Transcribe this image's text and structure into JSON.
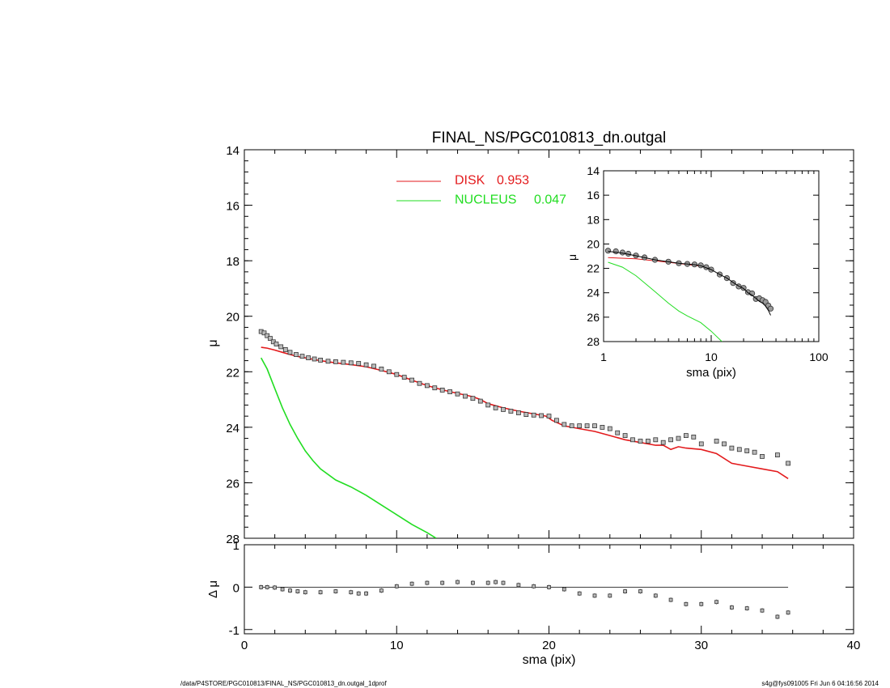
{
  "chart_data": [
    {
      "panel": "main",
      "type": "scatter",
      "title": "FINAL_NS/PGC010813_dn.outgal",
      "ylabel": "μ",
      "y_inverted": true,
      "xlim": [
        0,
        40
      ],
      "ylim": [
        28,
        14
      ],
      "y_ticks": [
        14,
        16,
        18,
        20,
        22,
        24,
        26,
        28
      ],
      "legend": {
        "placement": "top-center",
        "entries": [
          {
            "label": "DISK",
            "value": "0.953",
            "color": "#e31a1c"
          },
          {
            "label": "NUCLEUS",
            "value": "0.047",
            "color": "#22dd22"
          }
        ]
      },
      "series": [
        {
          "name": "data",
          "style": "markers",
          "color": "#444444",
          "points": [
            [
              1.1,
              20.55
            ],
            [
              1.3,
              20.6
            ],
            [
              1.5,
              20.7
            ],
            [
              1.7,
              20.8
            ],
            [
              1.9,
              20.92
            ],
            [
              2.1,
              21.0
            ],
            [
              2.4,
              21.1
            ],
            [
              2.7,
              21.2
            ],
            [
              3.0,
              21.3
            ],
            [
              3.4,
              21.38
            ],
            [
              3.8,
              21.44
            ],
            [
              4.2,
              21.5
            ],
            [
              4.6,
              21.54
            ],
            [
              5.0,
              21.58
            ],
            [
              5.5,
              21.62
            ],
            [
              6.0,
              21.64
            ],
            [
              6.5,
              21.66
            ],
            [
              7.0,
              21.68
            ],
            [
              7.5,
              21.7
            ],
            [
              8.0,
              21.75
            ],
            [
              8.5,
              21.8
            ],
            [
              9.0,
              21.9
            ],
            [
              9.5,
              22.0
            ],
            [
              10.0,
              22.1
            ],
            [
              10.5,
              22.2
            ],
            [
              11.0,
              22.3
            ],
            [
              11.5,
              22.42
            ],
            [
              12.0,
              22.5
            ],
            [
              12.5,
              22.58
            ],
            [
              13.0,
              22.66
            ],
            [
              13.5,
              22.72
            ],
            [
              14.0,
              22.8
            ],
            [
              14.5,
              22.88
            ],
            [
              15.0,
              22.96
            ],
            [
              15.5,
              23.06
            ],
            [
              16.0,
              23.2
            ],
            [
              16.5,
              23.3
            ],
            [
              17.0,
              23.36
            ],
            [
              17.5,
              23.42
            ],
            [
              18.0,
              23.48
            ],
            [
              18.5,
              23.54
            ],
            [
              19.0,
              23.56
            ],
            [
              19.5,
              23.58
            ],
            [
              20.0,
              23.6
            ],
            [
              20.5,
              23.75
            ],
            [
              21.0,
              23.9
            ],
            [
              21.5,
              23.95
            ],
            [
              22.0,
              23.95
            ],
            [
              22.5,
              23.95
            ],
            [
              23.0,
              23.95
            ],
            [
              23.5,
              24.0
            ],
            [
              24.0,
              24.05
            ],
            [
              24.5,
              24.2
            ],
            [
              25.0,
              24.3
            ],
            [
              25.5,
              24.45
            ],
            [
              26.0,
              24.5
            ],
            [
              26.5,
              24.5
            ],
            [
              27.0,
              24.45
            ],
            [
              27.5,
              24.55
            ],
            [
              28.0,
              24.45
            ],
            [
              28.5,
              24.4
            ],
            [
              29.0,
              24.3
            ],
            [
              29.5,
              24.35
            ],
            [
              30.0,
              24.6
            ],
            [
              31.0,
              24.5
            ],
            [
              31.5,
              24.6
            ],
            [
              32.0,
              24.75
            ],
            [
              32.5,
              24.8
            ],
            [
              33.0,
              24.85
            ],
            [
              33.5,
              24.9
            ],
            [
              34.0,
              25.05
            ],
            [
              35.0,
              25.0
            ],
            [
              35.7,
              25.3
            ]
          ]
        },
        {
          "name": "DISK 0.953",
          "style": "line",
          "color": "#e31a1c",
          "points": [
            [
              1.1,
              21.12
            ],
            [
              1.5,
              21.15
            ],
            [
              2.0,
              21.22
            ],
            [
              2.5,
              21.3
            ],
            [
              3.0,
              21.38
            ],
            [
              3.5,
              21.45
            ],
            [
              4.0,
              21.5
            ],
            [
              5.0,
              21.6
            ],
            [
              6.0,
              21.68
            ],
            [
              7.0,
              21.74
            ],
            [
              8.0,
              21.82
            ],
            [
              9.0,
              21.95
            ],
            [
              10.0,
              22.1
            ],
            [
              11.0,
              22.3
            ],
            [
              12.0,
              22.5
            ],
            [
              13.0,
              22.65
            ],
            [
              14.0,
              22.78
            ],
            [
              15.0,
              22.9
            ],
            [
              15.5,
              23.0
            ],
            [
              16.0,
              23.15
            ],
            [
              17.0,
              23.3
            ],
            [
              18.0,
              23.42
            ],
            [
              19.0,
              23.52
            ],
            [
              19.8,
              23.6
            ],
            [
              20.2,
              23.75
            ],
            [
              21.0,
              23.95
            ],
            [
              22.0,
              24.05
            ],
            [
              23.0,
              24.15
            ],
            [
              24.0,
              24.3
            ],
            [
              25.0,
              24.45
            ],
            [
              26.0,
              24.55
            ],
            [
              27.0,
              24.65
            ],
            [
              27.5,
              24.65
            ],
            [
              28.0,
              24.8
            ],
            [
              28.5,
              24.7
            ],
            [
              29.0,
              24.75
            ],
            [
              30.0,
              24.8
            ],
            [
              31.0,
              24.95
            ],
            [
              32.0,
              25.3
            ],
            [
              33.0,
              25.4
            ],
            [
              34.0,
              25.5
            ],
            [
              35.0,
              25.6
            ],
            [
              35.7,
              25.85
            ]
          ]
        },
        {
          "name": "NUCLEUS 0.047",
          "style": "line",
          "color": "#22dd22",
          "points": [
            [
              1.1,
              21.5
            ],
            [
              1.5,
              21.9
            ],
            [
              2.0,
              22.6
            ],
            [
              2.5,
              23.3
            ],
            [
              3.0,
              23.9
            ],
            [
              3.5,
              24.4
            ],
            [
              4.0,
              24.85
            ],
            [
              4.5,
              25.2
            ],
            [
              5.0,
              25.5
            ],
            [
              6.0,
              25.9
            ],
            [
              7.0,
              26.15
            ],
            [
              8.0,
              26.45
            ],
            [
              9.0,
              26.8
            ],
            [
              10.0,
              27.15
            ],
            [
              11.0,
              27.5
            ],
            [
              12.0,
              27.8
            ],
            [
              12.6,
              28.0
            ]
          ]
        }
      ]
    },
    {
      "panel": "residual",
      "type": "scatter",
      "xlabel": "sma (pix)",
      "ylabel": "Δ μ",
      "xlim": [
        0,
        40
      ],
      "ylim": [
        -1.1,
        1.0
      ],
      "x_ticks": [
        0,
        10,
        20,
        30,
        40
      ],
      "y_ticks": [
        -1,
        0,
        1
      ],
      "reference_line": 0,
      "series": [
        {
          "name": "residuals",
          "style": "markers",
          "color": "#444444",
          "points": [
            [
              1.1,
              0.0
            ],
            [
              1.5,
              0.0
            ],
            [
              2.0,
              -0.01
            ],
            [
              2.5,
              -0.05
            ],
            [
              3.0,
              -0.08
            ],
            [
              3.5,
              -0.1
            ],
            [
              4.0,
              -0.12
            ],
            [
              5.0,
              -0.12
            ],
            [
              6.0,
              -0.1
            ],
            [
              7.0,
              -0.12
            ],
            [
              7.5,
              -0.15
            ],
            [
              8.0,
              -0.15
            ],
            [
              9.0,
              -0.08
            ],
            [
              10.0,
              0.02
            ],
            [
              11.0,
              0.08
            ],
            [
              12.0,
              0.1
            ],
            [
              13.0,
              0.1
            ],
            [
              14.0,
              0.12
            ],
            [
              15.0,
              0.1
            ],
            [
              16.0,
              0.1
            ],
            [
              16.5,
              0.12
            ],
            [
              17.0,
              0.1
            ],
            [
              18.0,
              0.05
            ],
            [
              19.0,
              0.02
            ],
            [
              20.0,
              0.0
            ],
            [
              21.0,
              -0.05
            ],
            [
              22.0,
              -0.15
            ],
            [
              23.0,
              -0.2
            ],
            [
              24.0,
              -0.2
            ],
            [
              25.0,
              -0.1
            ],
            [
              26.0,
              -0.1
            ],
            [
              27.0,
              -0.2
            ],
            [
              28.0,
              -0.3
            ],
            [
              29.0,
              -0.4
            ],
            [
              30.0,
              -0.4
            ],
            [
              31.0,
              -0.35
            ],
            [
              32.0,
              -0.48
            ],
            [
              33.0,
              -0.5
            ],
            [
              34.0,
              -0.55
            ],
            [
              35.0,
              -0.7
            ],
            [
              35.7,
              -0.6
            ]
          ]
        }
      ]
    },
    {
      "panel": "inset",
      "type": "scatter",
      "xlabel": "sma (pix)",
      "ylabel": "μ",
      "x_scale": "log",
      "xlim": [
        1,
        100
      ],
      "ylim": [
        28,
        14
      ],
      "x_ticks": [
        1,
        10,
        100
      ],
      "y_ticks": [
        14,
        16,
        18,
        20,
        22,
        24,
        26,
        28
      ],
      "series": [
        {
          "name": "data",
          "style": "markers",
          "color": "#444444",
          "points": [
            [
              1.1,
              20.55
            ],
            [
              1.3,
              20.6
            ],
            [
              1.5,
              20.7
            ],
            [
              1.7,
              20.8
            ],
            [
              2.0,
              20.95
            ],
            [
              2.4,
              21.1
            ],
            [
              3.0,
              21.3
            ],
            [
              4.0,
              21.45
            ],
            [
              5.0,
              21.58
            ],
            [
              6.0,
              21.64
            ],
            [
              7.0,
              21.68
            ],
            [
              8.0,
              21.75
            ],
            [
              9.0,
              21.9
            ],
            [
              10.0,
              22.1
            ],
            [
              12.0,
              22.5
            ],
            [
              14.0,
              22.8
            ],
            [
              16.0,
              23.2
            ],
            [
              18.0,
              23.48
            ],
            [
              20.0,
              23.6
            ],
            [
              22.0,
              23.95
            ],
            [
              24.0,
              24.05
            ],
            [
              26.0,
              24.5
            ],
            [
              28.0,
              24.45
            ],
            [
              30.0,
              24.6
            ],
            [
              32.0,
              24.75
            ],
            [
              34.0,
              25.05
            ],
            [
              35.7,
              25.3
            ]
          ]
        },
        {
          "name": "model",
          "style": "line",
          "color": "#000000",
          "points": [
            [
              1.1,
              20.6
            ],
            [
              1.5,
              20.75
            ],
            [
              2.0,
              20.97
            ],
            [
              3.0,
              21.3
            ],
            [
              4.0,
              21.46
            ],
            [
              5.0,
              21.58
            ],
            [
              7.0,
              21.7
            ],
            [
              8.0,
              21.78
            ],
            [
              10.0,
              22.1
            ],
            [
              12.0,
              22.5
            ],
            [
              14.0,
              22.8
            ],
            [
              16.0,
              23.15
            ],
            [
              18.0,
              23.45
            ],
            [
              20.0,
              23.65
            ],
            [
              22.0,
              24.0
            ],
            [
              24.0,
              24.2
            ],
            [
              26.0,
              24.45
            ],
            [
              28.0,
              24.7
            ],
            [
              30.0,
              24.85
            ],
            [
              32.0,
              25.1
            ],
            [
              34.0,
              25.45
            ],
            [
              35.7,
              25.85
            ]
          ]
        },
        {
          "name": "disk",
          "style": "line",
          "color": "#e31a1c",
          "points": [
            [
              1.1,
              21.12
            ],
            [
              2.0,
              21.22
            ],
            [
              3.0,
              21.38
            ],
            [
              5.0,
              21.6
            ],
            [
              8.0,
              21.82
            ]
          ]
        },
        {
          "name": "nucleus",
          "style": "line",
          "color": "#22dd22",
          "points": [
            [
              1.1,
              21.5
            ],
            [
              1.5,
              21.9
            ],
            [
              2.0,
              22.6
            ],
            [
              3.0,
              23.9
            ],
            [
              4.0,
              24.85
            ],
            [
              5.0,
              25.5
            ],
            [
              6.0,
              25.9
            ],
            [
              8.0,
              26.45
            ],
            [
              10.0,
              27.15
            ],
            [
              12.6,
              28.0
            ]
          ]
        }
      ]
    }
  ],
  "footer": {
    "left": "/data/P4STORE/PGC010813/FINAL_NS/PGC010813_dn.outgal_1dprof",
    "right": "s4g@fys091005  Fri Jun  6 04:16:56 2014"
  }
}
